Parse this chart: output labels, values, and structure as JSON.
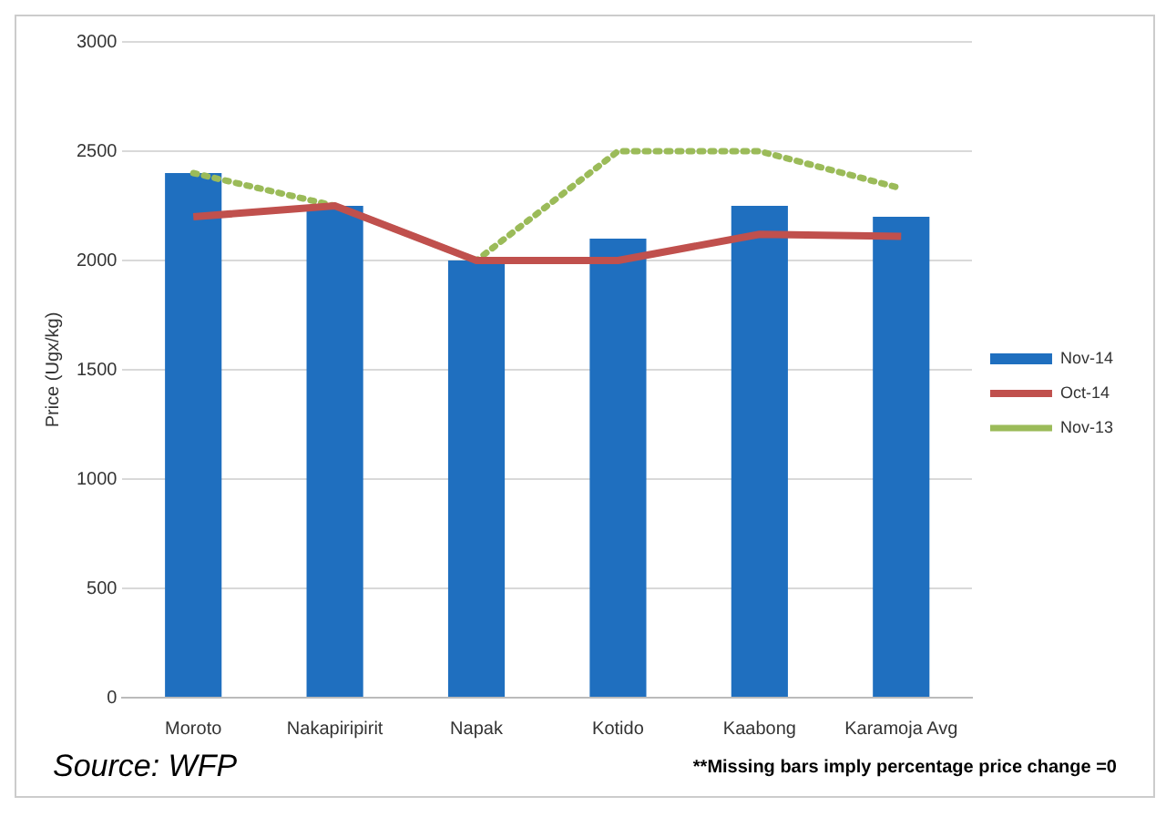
{
  "chart_data": {
    "type": "bar",
    "ylabel": "Price (Ugx/kg)",
    "categories": [
      "Moroto",
      "Nakapiripirit",
      "Napak",
      "Kotido",
      "Kaabong",
      "Karamoja Avg"
    ],
    "series": [
      {
        "name": "Nov-14",
        "color": "#1f6fbf",
        "values": [
          2400,
          2250,
          2000,
          2100,
          2250,
          2200
        ]
      },
      {
        "name": "Oct-14",
        "type": "line",
        "color": "#c0504d",
        "line_style": "solid",
        "values": [
          2200,
          2250,
          2000,
          2000,
          2120,
          2110
        ]
      },
      {
        "name": "Nov-13",
        "type": "line",
        "color": "#9bbb59",
        "line_style": "dotted",
        "values": [
          2400,
          2250,
          2000,
          2500,
          2500,
          2330
        ]
      }
    ],
    "ylim": [
      0,
      3000
    ],
    "yticks": [
      0,
      500,
      1000,
      1500,
      2000,
      2500,
      3000
    ],
    "grid": "y",
    "legend": "right",
    "marker": "none",
    "annotations": [
      "Source: WFP",
      "**Missing bars imply percentage price change =0"
    ]
  }
}
